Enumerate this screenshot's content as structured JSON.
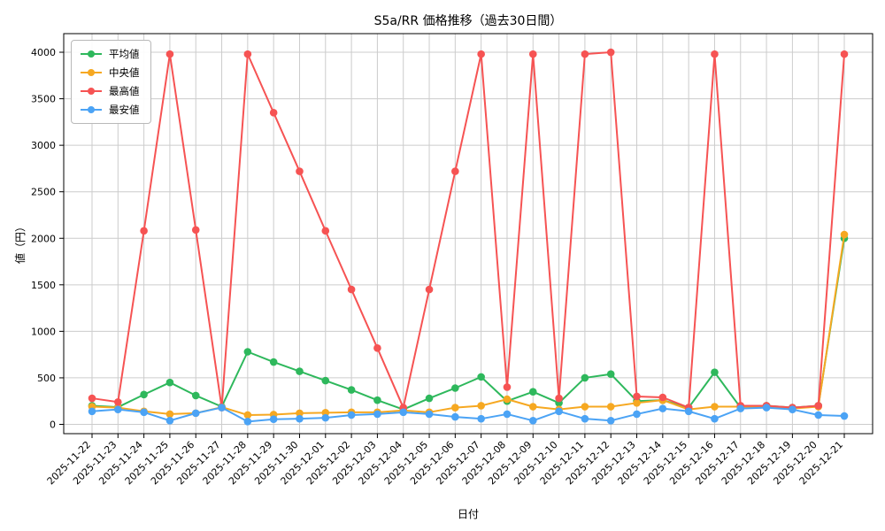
{
  "chart_data": {
    "type": "line",
    "title": "S5a/RR 価格推移（過去30日間）",
    "xlabel": "日付",
    "ylabel": "値（円）",
    "ylim": [
      -100,
      4200
    ],
    "y_ticks": [
      0,
      500,
      1000,
      1500,
      2000,
      2500,
      3000,
      3500,
      4000
    ],
    "grid": true,
    "legend_position": "upper-left",
    "colors": {
      "grid": "#cccccc",
      "axis": "#000000",
      "background": "#ffffff"
    },
    "categories": [
      "2025-11-22",
      "2025-11-23",
      "2025-11-24",
      "2025-11-25",
      "2025-11-26",
      "2025-11-27",
      "2025-11-28",
      "2025-11-29",
      "2025-11-30",
      "2025-12-01",
      "2025-12-02",
      "2025-12-03",
      "2025-12-04",
      "2025-12-05",
      "2025-12-06",
      "2025-12-07",
      "2025-12-08",
      "2025-12-09",
      "2025-12-10",
      "2025-12-11",
      "2025-12-12",
      "2025-12-13",
      "2025-12-14",
      "2025-12-15",
      "2025-12-16",
      "2025-12-17",
      "2025-12-18",
      "2025-12-19",
      "2025-12-20",
      "2025-12-21"
    ],
    "series": [
      {
        "key": "average",
        "name": "平均値",
        "color": "#2eb85c",
        "values": [
          200,
          185,
          320,
          450,
          310,
          190,
          780,
          670,
          570,
          470,
          370,
          260,
          160,
          280,
          390,
          510,
          250,
          350,
          230,
          500,
          540,
          250,
          260,
          180,
          560,
          180,
          200,
          180,
          200,
          2000
        ]
      },
      {
        "key": "median",
        "name": "中央値",
        "color": "#f6a821",
        "values": [
          190,
          180,
          140,
          110,
          120,
          185,
          100,
          105,
          120,
          125,
          130,
          130,
          150,
          130,
          180,
          200,
          270,
          190,
          160,
          190,
          190,
          230,
          260,
          160,
          190,
          190,
          190,
          170,
          190,
          2040
        ]
      },
      {
        "key": "max",
        "name": "最高値",
        "color": "#f65353",
        "values": [
          280,
          240,
          2080,
          3980,
          2090,
          180,
          3980,
          3350,
          2720,
          2080,
          1450,
          820,
          180,
          1450,
          2720,
          3980,
          400,
          3980,
          280,
          3980,
          4000,
          300,
          290,
          180,
          3980,
          200,
          200,
          180,
          200,
          3980
        ]
      },
      {
        "key": "min",
        "name": "最安値",
        "color": "#4ba3f5",
        "values": [
          140,
          160,
          130,
          40,
          120,
          180,
          30,
          55,
          60,
          70,
          100,
          110,
          130,
          110,
          80,
          60,
          110,
          40,
          140,
          60,
          40,
          110,
          170,
          140,
          60,
          170,
          180,
          160,
          100,
          90
        ]
      }
    ]
  }
}
